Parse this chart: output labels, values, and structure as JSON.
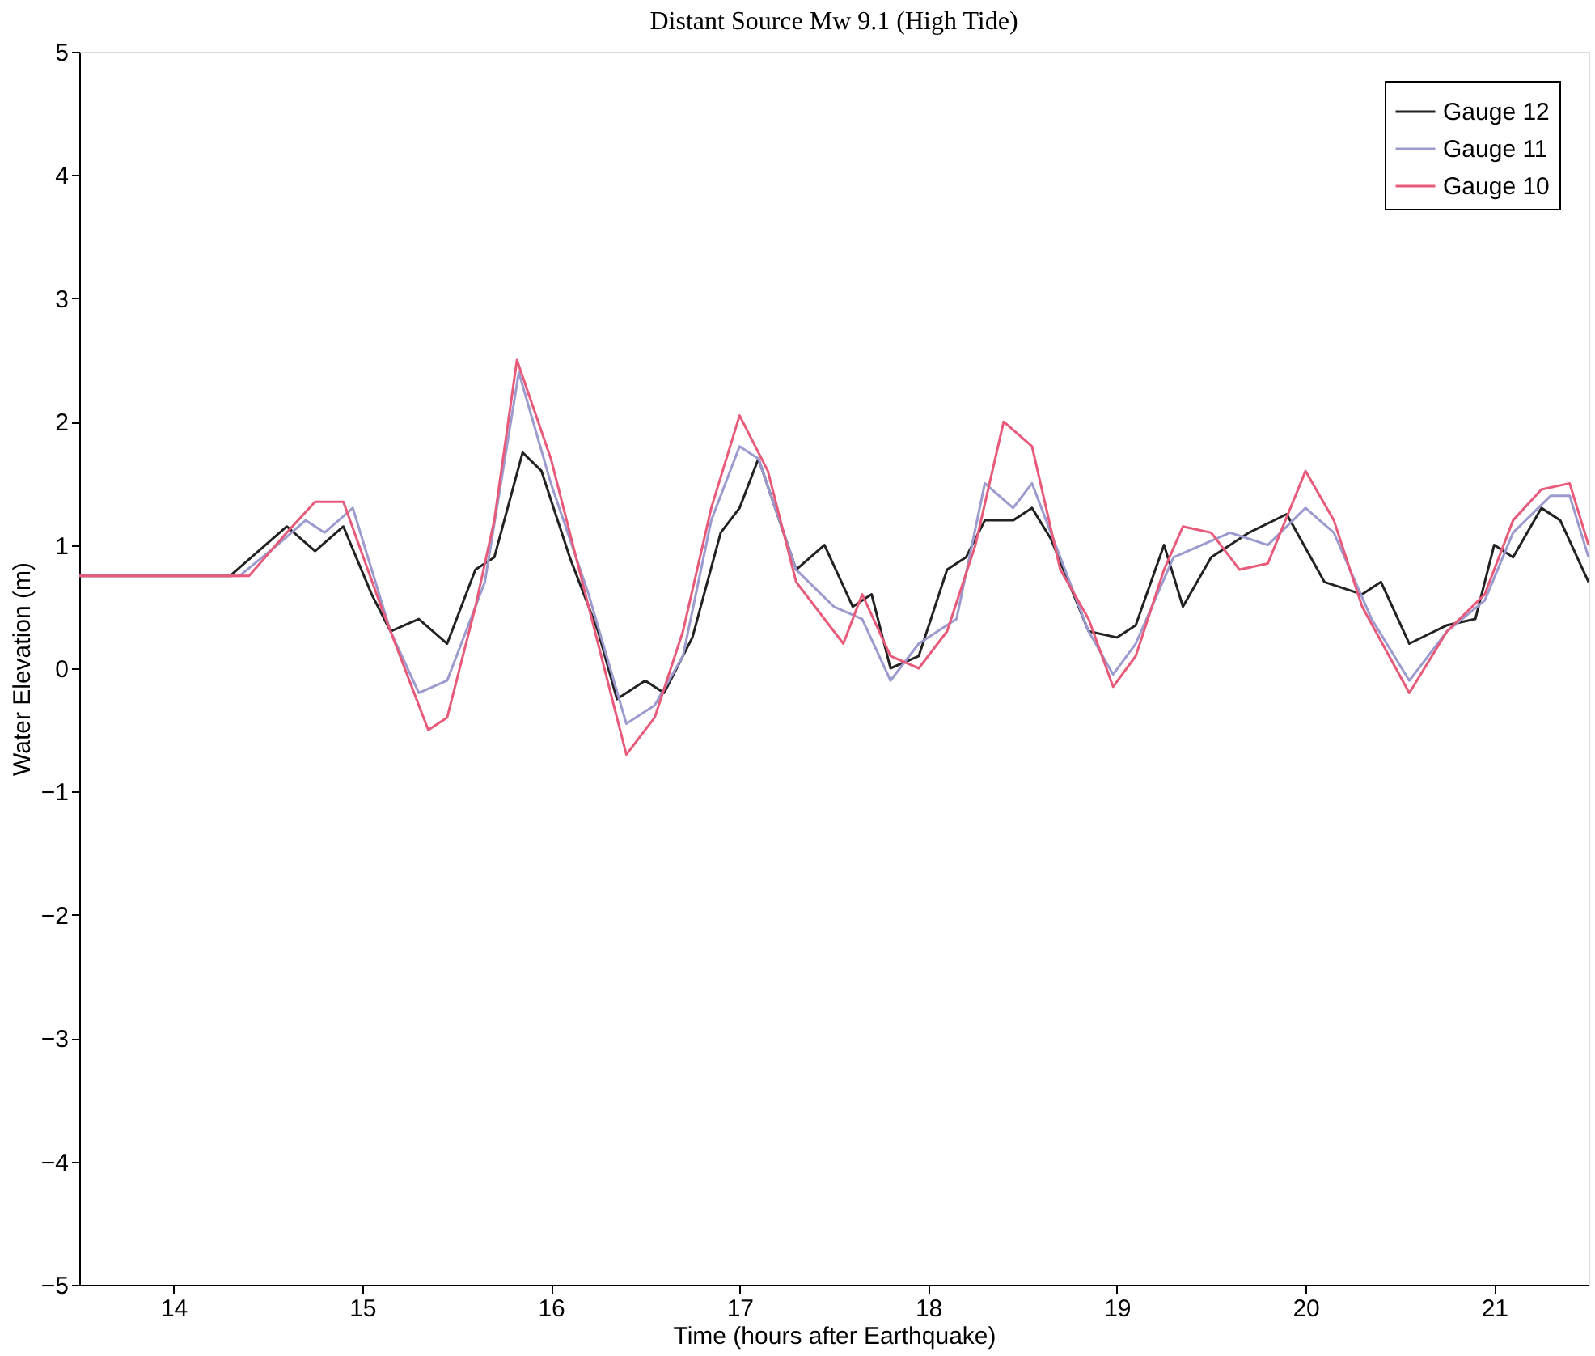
{
  "chart_data": {
    "type": "line",
    "title": "Distant Source Mw 9.1 (High Tide)",
    "xlabel": "Time (hours after Earthquake)",
    "ylabel": "Water Elevation (m)",
    "xlim": [
      13.5,
      21.5
    ],
    "xticks": [
      14,
      15,
      16,
      17,
      18,
      19,
      20,
      21
    ],
    "ylim": [
      -5,
      5
    ],
    "yticks": [
      -5,
      -4,
      -3,
      -2,
      -1,
      0,
      1,
      2,
      3,
      4,
      5
    ],
    "grid": false,
    "legend": "top right",
    "series": [
      {
        "name": "Gauge 12",
        "color": "#222222",
        "x": [
          13.5,
          14.3,
          14.45,
          14.6,
          14.75,
          14.9,
          15.05,
          15.15,
          15.3,
          15.45,
          15.6,
          15.7,
          15.85,
          15.95,
          16.1,
          16.25,
          16.35,
          16.5,
          16.6,
          16.75,
          16.9,
          17.0,
          17.1,
          17.3,
          17.45,
          17.6,
          17.7,
          17.8,
          17.95,
          18.1,
          18.2,
          18.3,
          18.45,
          18.55,
          18.65,
          18.85,
          19.0,
          19.1,
          19.25,
          19.35,
          19.5,
          19.7,
          19.9,
          20.1,
          20.3,
          20.4,
          20.55,
          20.75,
          20.9,
          21.0,
          21.1,
          21.25,
          21.35,
          21.5
        ],
        "values": [
          0.75,
          0.75,
          0.95,
          1.15,
          0.95,
          1.15,
          0.6,
          0.3,
          0.4,
          0.2,
          0.8,
          0.9,
          1.75,
          1.6,
          0.9,
          0.3,
          -0.25,
          -0.1,
          -0.2,
          0.25,
          1.1,
          1.3,
          1.7,
          0.8,
          1.0,
          0.5,
          0.6,
          0.0,
          0.1,
          0.8,
          0.9,
          1.2,
          1.2,
          1.3,
          1.05,
          0.3,
          0.25,
          0.35,
          1.0,
          0.5,
          0.9,
          1.1,
          1.25,
          0.7,
          0.6,
          0.7,
          0.2,
          0.35,
          0.4,
          1.0,
          0.9,
          1.3,
          1.2,
          0.7
        ]
      },
      {
        "name": "Gauge 11",
        "color": "#9b9bcf",
        "x": [
          13.5,
          14.35,
          14.55,
          14.7,
          14.8,
          14.95,
          15.15,
          15.3,
          15.45,
          15.65,
          15.83,
          16.0,
          16.2,
          16.4,
          16.55,
          16.7,
          16.85,
          17.0,
          17.1,
          17.3,
          17.5,
          17.65,
          17.8,
          17.95,
          18.15,
          18.3,
          18.45,
          18.55,
          18.7,
          18.85,
          18.98,
          19.1,
          19.3,
          19.45,
          19.6,
          19.8,
          20.0,
          20.15,
          20.35,
          20.55,
          20.75,
          20.95,
          21.1,
          21.3,
          21.4,
          21.5
        ],
        "values": [
          0.75,
          0.75,
          1.0,
          1.2,
          1.1,
          1.3,
          0.3,
          -0.2,
          -0.1,
          0.7,
          2.4,
          1.5,
          0.6,
          -0.45,
          -0.3,
          0.1,
          1.2,
          1.8,
          1.7,
          0.8,
          0.5,
          0.4,
          -0.1,
          0.2,
          0.4,
          1.5,
          1.3,
          1.5,
          0.9,
          0.3,
          -0.05,
          0.2,
          0.9,
          1.0,
          1.1,
          1.0,
          1.3,
          1.1,
          0.4,
          -0.1,
          0.3,
          0.55,
          1.1,
          1.4,
          1.4,
          0.9
        ]
      },
      {
        "name": "Gauge 10",
        "color": "#e85a7a",
        "x": [
          13.5,
          14.4,
          14.6,
          14.75,
          14.9,
          15.1,
          15.2,
          15.35,
          15.45,
          15.6,
          15.7,
          15.82,
          16.0,
          16.2,
          16.4,
          16.55,
          16.7,
          16.85,
          17.0,
          17.15,
          17.3,
          17.55,
          17.65,
          17.8,
          17.95,
          18.1,
          18.25,
          18.4,
          18.55,
          18.7,
          18.85,
          18.98,
          19.1,
          19.25,
          19.35,
          19.5,
          19.65,
          19.8,
          20.0,
          20.15,
          20.3,
          20.55,
          20.75,
          20.95,
          21.1,
          21.25,
          21.4,
          21.5
        ],
        "values": [
          0.75,
          0.75,
          1.1,
          1.35,
          1.35,
          0.5,
          0.1,
          -0.5,
          -0.4,
          0.5,
          1.2,
          2.5,
          1.7,
          0.5,
          -0.7,
          -0.4,
          0.3,
          1.3,
          2.05,
          1.6,
          0.7,
          0.2,
          0.6,
          0.1,
          0.0,
          0.3,
          1.0,
          2.0,
          1.8,
          0.8,
          0.4,
          -0.15,
          0.1,
          0.8,
          1.15,
          1.1,
          0.8,
          0.85,
          1.6,
          1.2,
          0.5,
          -0.2,
          0.3,
          0.6,
          1.2,
          1.45,
          1.5,
          1.0
        ]
      }
    ]
  }
}
